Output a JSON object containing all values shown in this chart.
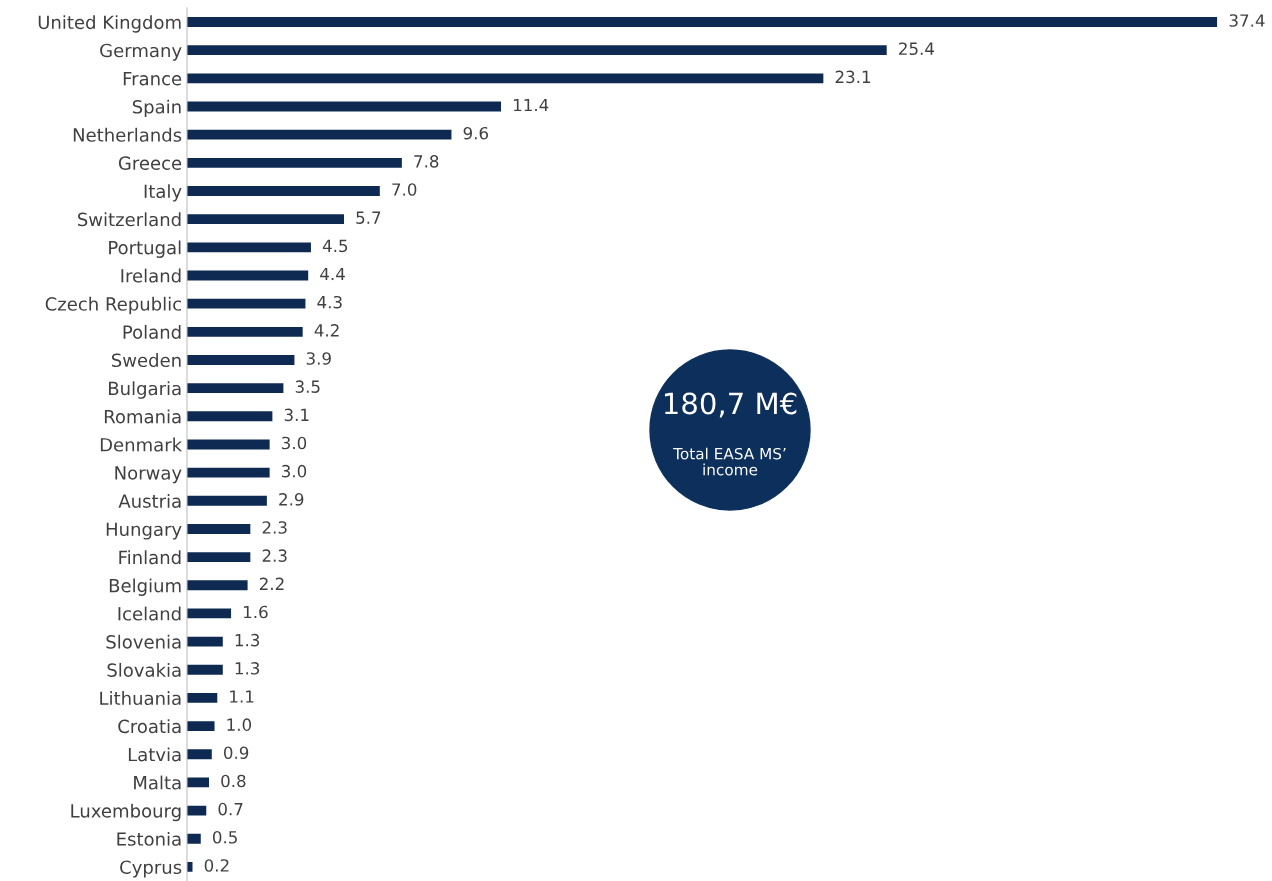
{
  "chart_data": {
    "type": "bar",
    "orientation": "horizontal",
    "categories": [
      "United Kingdom",
      "Germany",
      "France",
      "Spain",
      "Netherlands",
      "Greece",
      "Italy",
      "Switzerland",
      "Portugal",
      "Ireland",
      "Czech Republic",
      "Poland",
      "Sweden",
      "Bulgaria",
      "Romania",
      "Denmark",
      "Norway",
      "Austria",
      "Hungary",
      "Finland",
      "Belgium",
      "Iceland",
      "Slovenia",
      "Slovakia",
      "Lithuania",
      "Croatia",
      "Latvia",
      "Malta",
      "Luxembourg",
      "Estonia",
      "Cyprus"
    ],
    "values": [
      37.4,
      25.4,
      23.1,
      11.4,
      9.6,
      7.8,
      7.0,
      5.7,
      4.5,
      4.4,
      4.3,
      4.2,
      3.9,
      3.5,
      3.1,
      3.0,
      3.0,
      2.9,
      2.3,
      2.3,
      2.2,
      1.6,
      1.3,
      1.3,
      1.1,
      1.0,
      0.9,
      0.8,
      0.7,
      0.5,
      0.2
    ],
    "value_labels": [
      "37.4",
      "25.4",
      "23.1",
      "11.4",
      "9.6",
      "7.8",
      "7.0",
      "5.7",
      "4.5",
      "4.4",
      "4.3",
      "4.2",
      "3.9",
      "3.5",
      "3.1",
      "3.0",
      "3.0",
      "2.9",
      "2.3",
      "2.3",
      "2.2",
      "1.6",
      "1.3",
      "1.3",
      "1.1",
      "1.0",
      "0.9",
      "0.8",
      "0.7",
      "0.5",
      "0.2"
    ],
    "color": "#0e2a52",
    "tick_labels": "y",
    "grid": false,
    "legend": false,
    "annotations": [
      "180,7 M€",
      "Total EASA MS’\nincome"
    ]
  }
}
